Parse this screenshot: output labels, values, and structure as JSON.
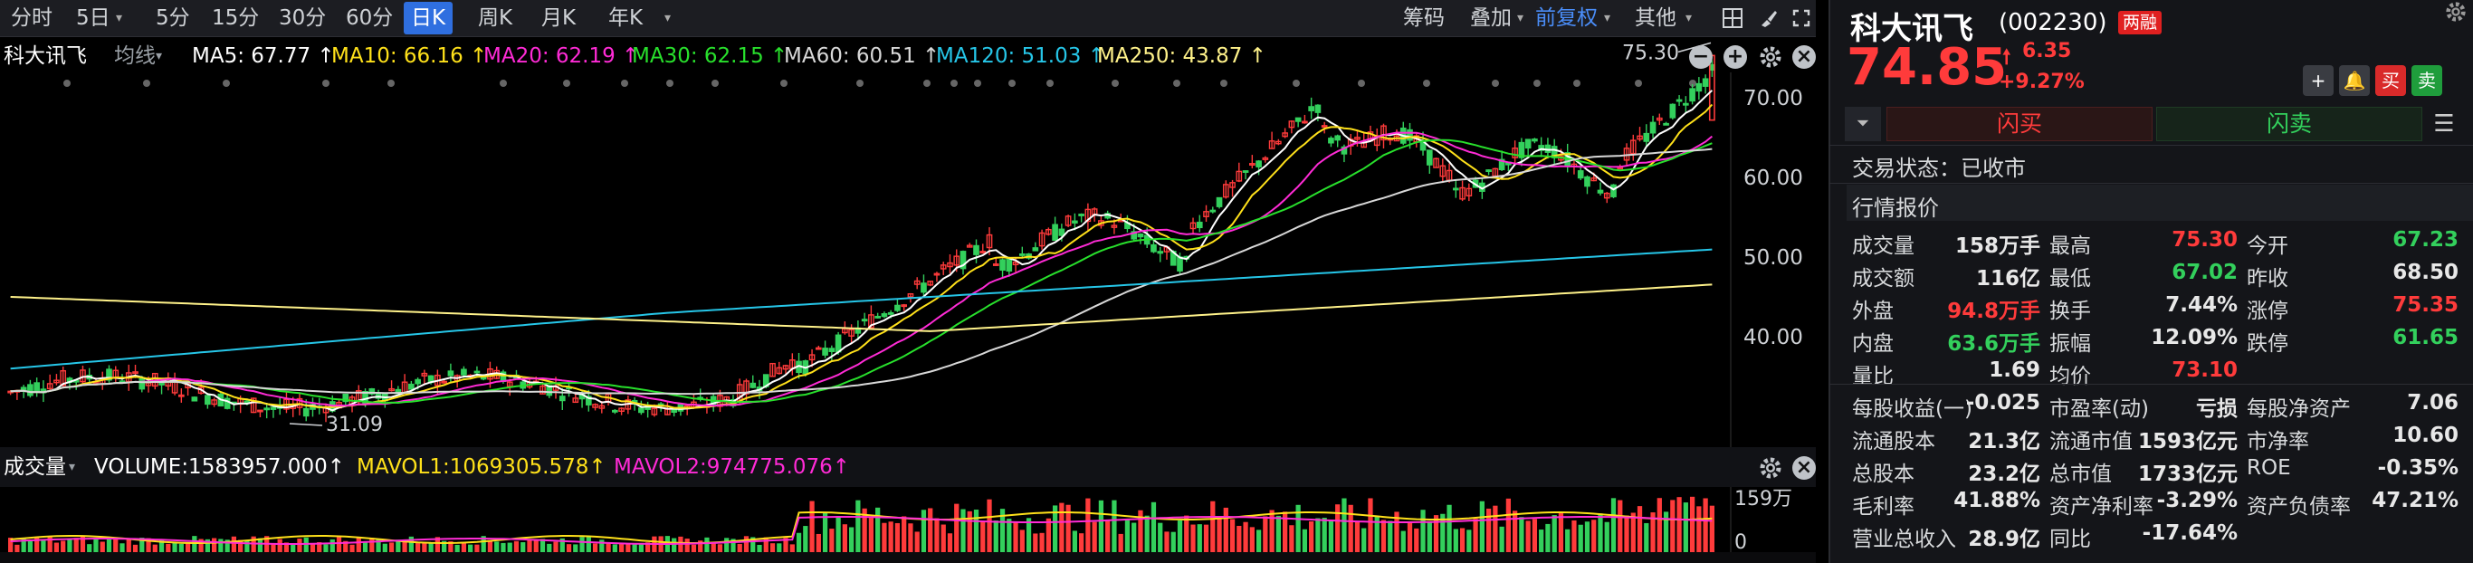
{
  "toolbar": {
    "periods": [
      "分时",
      "5日",
      "5分",
      "15分",
      "30分",
      "60分",
      "日K",
      "周K",
      "月K",
      "年K"
    ],
    "active_period": "日K",
    "right_items": {
      "chips": "筹码",
      "overlay": "叠加",
      "adjust": "前复权",
      "more": "其他"
    }
  },
  "chart": {
    "stock_name": "科大讯飞",
    "line_type": "均线",
    "ma_labels": [
      {
        "text": "MA5: 67.77 ↑",
        "color": "#ffffff"
      },
      {
        "text": "MA10: 66.16 ↑",
        "color": "#ffe11a"
      },
      {
        "text": "MA20: 62.19 ↑",
        "color": "#ff2bd6"
      },
      {
        "text": "MA30: 62.15 ↑",
        "color": "#28e02c"
      },
      {
        "text": "MA60: 60.51 ↑",
        "color": "#d8d8d8"
      },
      {
        "text": "MA120: 51.03 ↑",
        "color": "#26c6e8"
      },
      {
        "text": "MA250: 43.87 ↑",
        "color": "#fff28a"
      }
    ],
    "price_labels": [
      "70.00",
      "60.00",
      "50.00",
      "40.00"
    ],
    "max_annotation": "75.30",
    "min_annotation": "31.09"
  },
  "volume": {
    "title": "成交量",
    "labels": [
      {
        "text": "VOLUME:1583957.000↑",
        "color": "#ffffff"
      },
      {
        "text": "MAVOL1:1069305.578↑",
        "color": "#ffe11a"
      },
      {
        "text": "MAVOL2:974775.076↑",
        "color": "#ff2bd6"
      }
    ],
    "axis_labels": [
      "159万",
      "0"
    ]
  },
  "colors": {
    "up": "#ff3b3b",
    "down": "#33d05c",
    "accent": "#2f6fe0"
  },
  "quote": {
    "name": "科大讯飞",
    "code": "(002230)",
    "badge": "两融",
    "price": "74.85",
    "change": "6.35",
    "change_pct": "+9.27%",
    "flash_buy": "闪买",
    "flash_sell": "闪卖",
    "buy_badge": "买",
    "sell_badge": "卖",
    "status": "交易状态：已收市",
    "section_title": "行情报价",
    "rows": [
      [
        {
          "l": "成交量",
          "v": "158万手",
          "c": ""
        },
        {
          "l": "最高",
          "v": "75.30",
          "c": "red"
        },
        {
          "l": "今开",
          "v": "67.23",
          "c": "green"
        }
      ],
      [
        {
          "l": "成交额",
          "v": "116亿",
          "c": ""
        },
        {
          "l": "最低",
          "v": "67.02",
          "c": "green"
        },
        {
          "l": "昨收",
          "v": "68.50",
          "c": ""
        }
      ],
      [
        {
          "l": "外盘",
          "v": "94.8万手",
          "c": "red"
        },
        {
          "l": "换手",
          "v": "7.44%",
          "c": ""
        },
        {
          "l": "涨停",
          "v": "75.35",
          "c": "red"
        }
      ],
      [
        {
          "l": "内盘",
          "v": "63.6万手",
          "c": "green"
        },
        {
          "l": "振幅",
          "v": "12.09%",
          "c": ""
        },
        {
          "l": "跌停",
          "v": "61.65",
          "c": "green"
        }
      ],
      [
        {
          "l": "量比",
          "v": "1.69",
          "c": ""
        },
        {
          "l": "均价",
          "v": "73.10",
          "c": "red"
        },
        {
          "l": "",
          "v": "",
          "c": ""
        }
      ]
    ],
    "rows2": [
      [
        {
          "l": "每股收益(一)",
          "v": "-0.025",
          "c": ""
        },
        {
          "l": "市盈率(动)",
          "v": "亏损",
          "c": ""
        },
        {
          "l": "每股净资产",
          "v": "7.06",
          "c": ""
        }
      ],
      [
        {
          "l": "流通股本",
          "v": "21.3亿",
          "c": ""
        },
        {
          "l": "流通市值",
          "v": "1593亿元",
          "c": ""
        },
        {
          "l": "市净率",
          "v": "10.60",
          "c": ""
        }
      ],
      [
        {
          "l": "总股本",
          "v": "23.2亿",
          "c": ""
        },
        {
          "l": "总市值",
          "v": "1733亿元",
          "c": ""
        },
        {
          "l": "ROE",
          "v": "-0.35%",
          "c": ""
        }
      ],
      [
        {
          "l": "毛利率",
          "v": "41.88%",
          "c": ""
        },
        {
          "l": "资产净利率",
          "v": "-3.29%",
          "c": ""
        },
        {
          "l": "资产负债率",
          "v": "47.21%",
          "c": ""
        }
      ],
      [
        {
          "l": "营业总收入",
          "v": "28.9亿",
          "c": ""
        },
        {
          "l": "同比",
          "v": "-17.64%",
          "c": ""
        },
        {
          "l": "",
          "v": "",
          "c": ""
        }
      ]
    ]
  }
}
